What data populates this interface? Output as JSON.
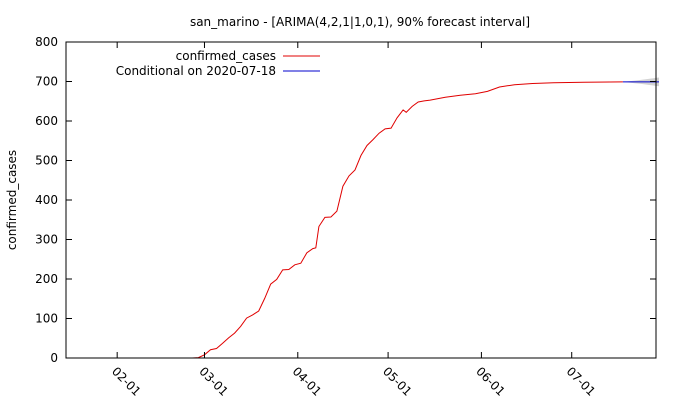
{
  "chart_data": {
    "type": "line",
    "title": "san_marino -  [ARIMA(4,2,1|1,0,1), 90% forecast interval]",
    "xlabel": "",
    "ylabel": "confirmed_cases",
    "xlim": [
      "2020-01-15",
      "2020-07-29"
    ],
    "ylim": [
      0,
      800
    ],
    "y_ticks": [
      0,
      100,
      200,
      300,
      400,
      500,
      600,
      700,
      800
    ],
    "x_ticks": [
      {
        "date": "2020-02-01",
        "label": "02-01"
      },
      {
        "date": "2020-03-01",
        "label": "03-01"
      },
      {
        "date": "2020-04-01",
        "label": "04-01"
      },
      {
        "date": "2020-05-01",
        "label": "05-01"
      },
      {
        "date": "2020-06-01",
        "label": "06-01"
      },
      {
        "date": "2020-07-01",
        "label": "07-01"
      }
    ],
    "grid": false,
    "legend_position": "top-left",
    "series": [
      {
        "name": "confirmed_cases",
        "color": "#e00000",
        "points": [
          [
            "2020-02-26",
            0
          ],
          [
            "2020-02-28",
            1
          ],
          [
            "2020-03-01",
            8
          ],
          [
            "2020-03-03",
            21
          ],
          [
            "2020-03-05",
            24
          ],
          [
            "2020-03-07",
            37
          ],
          [
            "2020-03-09",
            51
          ],
          [
            "2020-03-11",
            63
          ],
          [
            "2020-03-13",
            80
          ],
          [
            "2020-03-15",
            101
          ],
          [
            "2020-03-17",
            109
          ],
          [
            "2020-03-19",
            119
          ],
          [
            "2020-03-21",
            151
          ],
          [
            "2020-03-23",
            187
          ],
          [
            "2020-03-25",
            199
          ],
          [
            "2020-03-27",
            223
          ],
          [
            "2020-03-29",
            224
          ],
          [
            "2020-03-31",
            236
          ],
          [
            "2020-04-02",
            240
          ],
          [
            "2020-04-04",
            266
          ],
          [
            "2020-04-06",
            277
          ],
          [
            "2020-04-07",
            279
          ],
          [
            "2020-04-08",
            333
          ],
          [
            "2020-04-10",
            356
          ],
          [
            "2020-04-12",
            357
          ],
          [
            "2020-04-14",
            372
          ],
          [
            "2020-04-16",
            435
          ],
          [
            "2020-04-18",
            461
          ],
          [
            "2020-04-20",
            476
          ],
          [
            "2020-04-22",
            513
          ],
          [
            "2020-04-24",
            538
          ],
          [
            "2020-04-26",
            553
          ],
          [
            "2020-04-28",
            569
          ],
          [
            "2020-04-30",
            580
          ],
          [
            "2020-05-02",
            582
          ],
          [
            "2020-05-04",
            608
          ],
          [
            "2020-05-06",
            628
          ],
          [
            "2020-05-07",
            622
          ],
          [
            "2020-05-09",
            637
          ],
          [
            "2020-05-11",
            648
          ],
          [
            "2020-05-13",
            651
          ],
          [
            "2020-05-15",
            653
          ],
          [
            "2020-05-20",
            660
          ],
          [
            "2020-05-25",
            665
          ],
          [
            "2020-05-30",
            669
          ],
          [
            "2020-06-03",
            675
          ],
          [
            "2020-06-07",
            686
          ],
          [
            "2020-06-12",
            692
          ],
          [
            "2020-06-18",
            695
          ],
          [
            "2020-06-25",
            697
          ],
          [
            "2020-07-05",
            698
          ],
          [
            "2020-07-18",
            699
          ]
        ]
      },
      {
        "name": "Conditional on 2020-07-18",
        "color": "#0000cc",
        "points": [
          [
            "2020-07-18",
            699
          ],
          [
            "2020-07-24",
            699
          ],
          [
            "2020-07-30",
            699
          ]
        ]
      }
    ],
    "forecast_interval": {
      "color": "#d3d3d3",
      "points": [
        [
          "2020-07-18",
          699,
          699
        ],
        [
          "2020-07-24",
          694,
          704
        ],
        [
          "2020-07-30",
          688,
          710
        ]
      ]
    }
  }
}
